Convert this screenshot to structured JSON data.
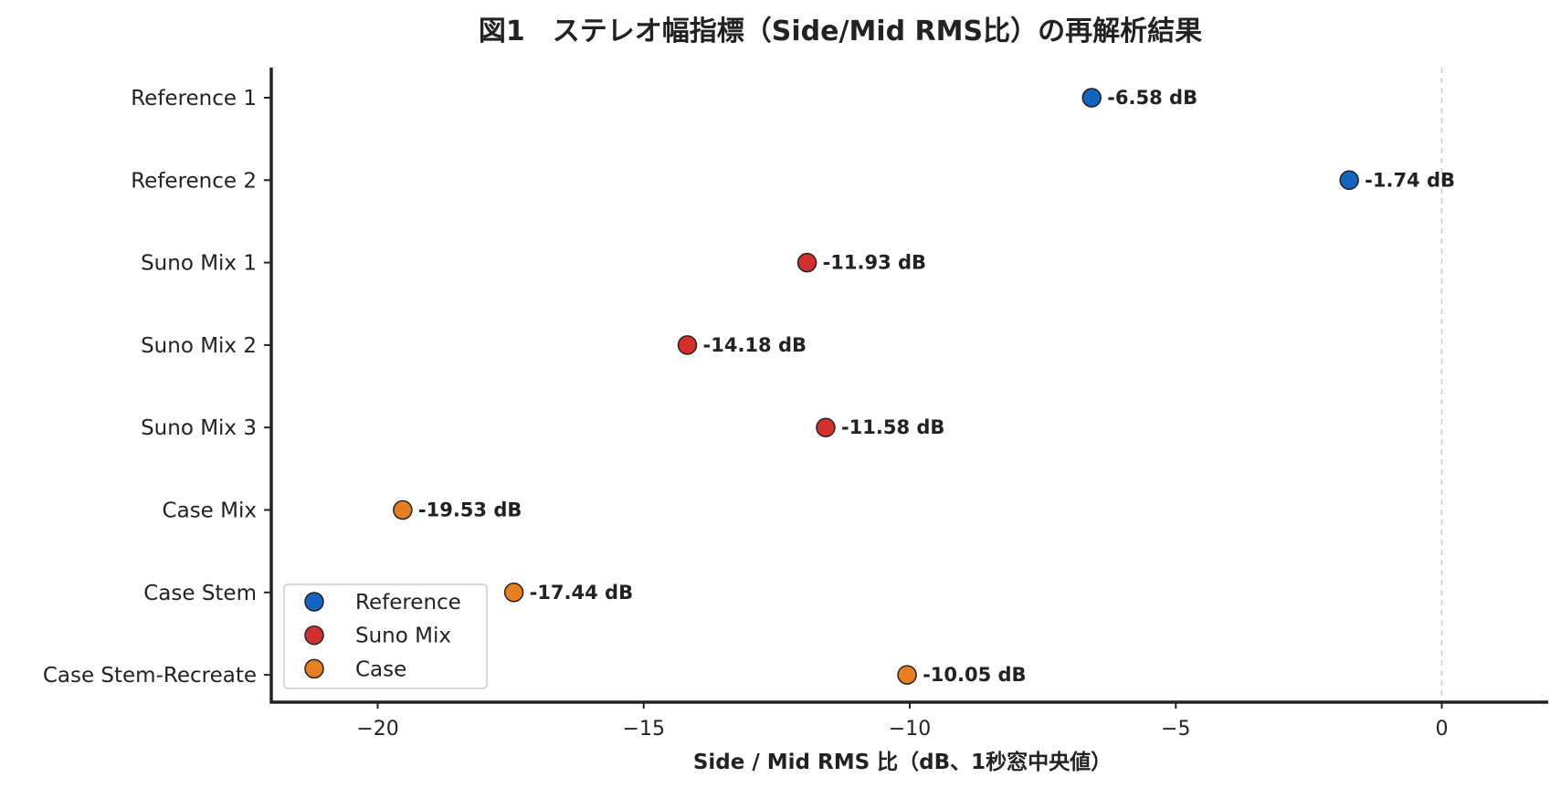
{
  "chart_data": {
    "type": "scatter",
    "orientation": "horizontal-dot",
    "title": "図1　ステレオ幅指標（Side/Mid RMS比）の再解析結果",
    "xlabel": "Side / Mid RMS 比（dB、1秒窓中央値）",
    "ylabel": "",
    "xlim": [
      -22,
      2
    ],
    "xticks": [
      -20,
      -15,
      -10,
      -5,
      0
    ],
    "xtick_labels": [
      "−20",
      "−15",
      "−10",
      "−5",
      "0"
    ],
    "reference_line": 0,
    "grid": false,
    "legend_position": "bottom-left",
    "unit_suffix": " dB",
    "groups": [
      {
        "name": "Reference",
        "color": "#1565C0"
      },
      {
        "name": "Suno Mix",
        "color": "#D32F2F"
      },
      {
        "name": "Case",
        "color": "#E67E22"
      }
    ],
    "points": [
      {
        "category": "Reference 1",
        "value": -6.58,
        "group": "Reference",
        "label": "-6.58 dB"
      },
      {
        "category": "Reference 2",
        "value": -1.74,
        "group": "Reference",
        "label": "-1.74 dB"
      },
      {
        "category": "Suno Mix 1",
        "value": -11.93,
        "group": "Suno Mix",
        "label": "-11.93 dB"
      },
      {
        "category": "Suno Mix 2",
        "value": -14.18,
        "group": "Suno Mix",
        "label": "-14.18 dB"
      },
      {
        "category": "Suno Mix 3",
        "value": -11.58,
        "group": "Suno Mix",
        "label": "-11.58 dB"
      },
      {
        "category": "Case Mix",
        "value": -19.53,
        "group": "Case",
        "label": "-19.53 dB"
      },
      {
        "category": "Case Stem",
        "value": -17.44,
        "group": "Case",
        "label": "-17.44 dB"
      },
      {
        "category": "Case Stem-Recreate",
        "value": -10.05,
        "group": "Case",
        "label": "-10.05 dB"
      }
    ]
  }
}
